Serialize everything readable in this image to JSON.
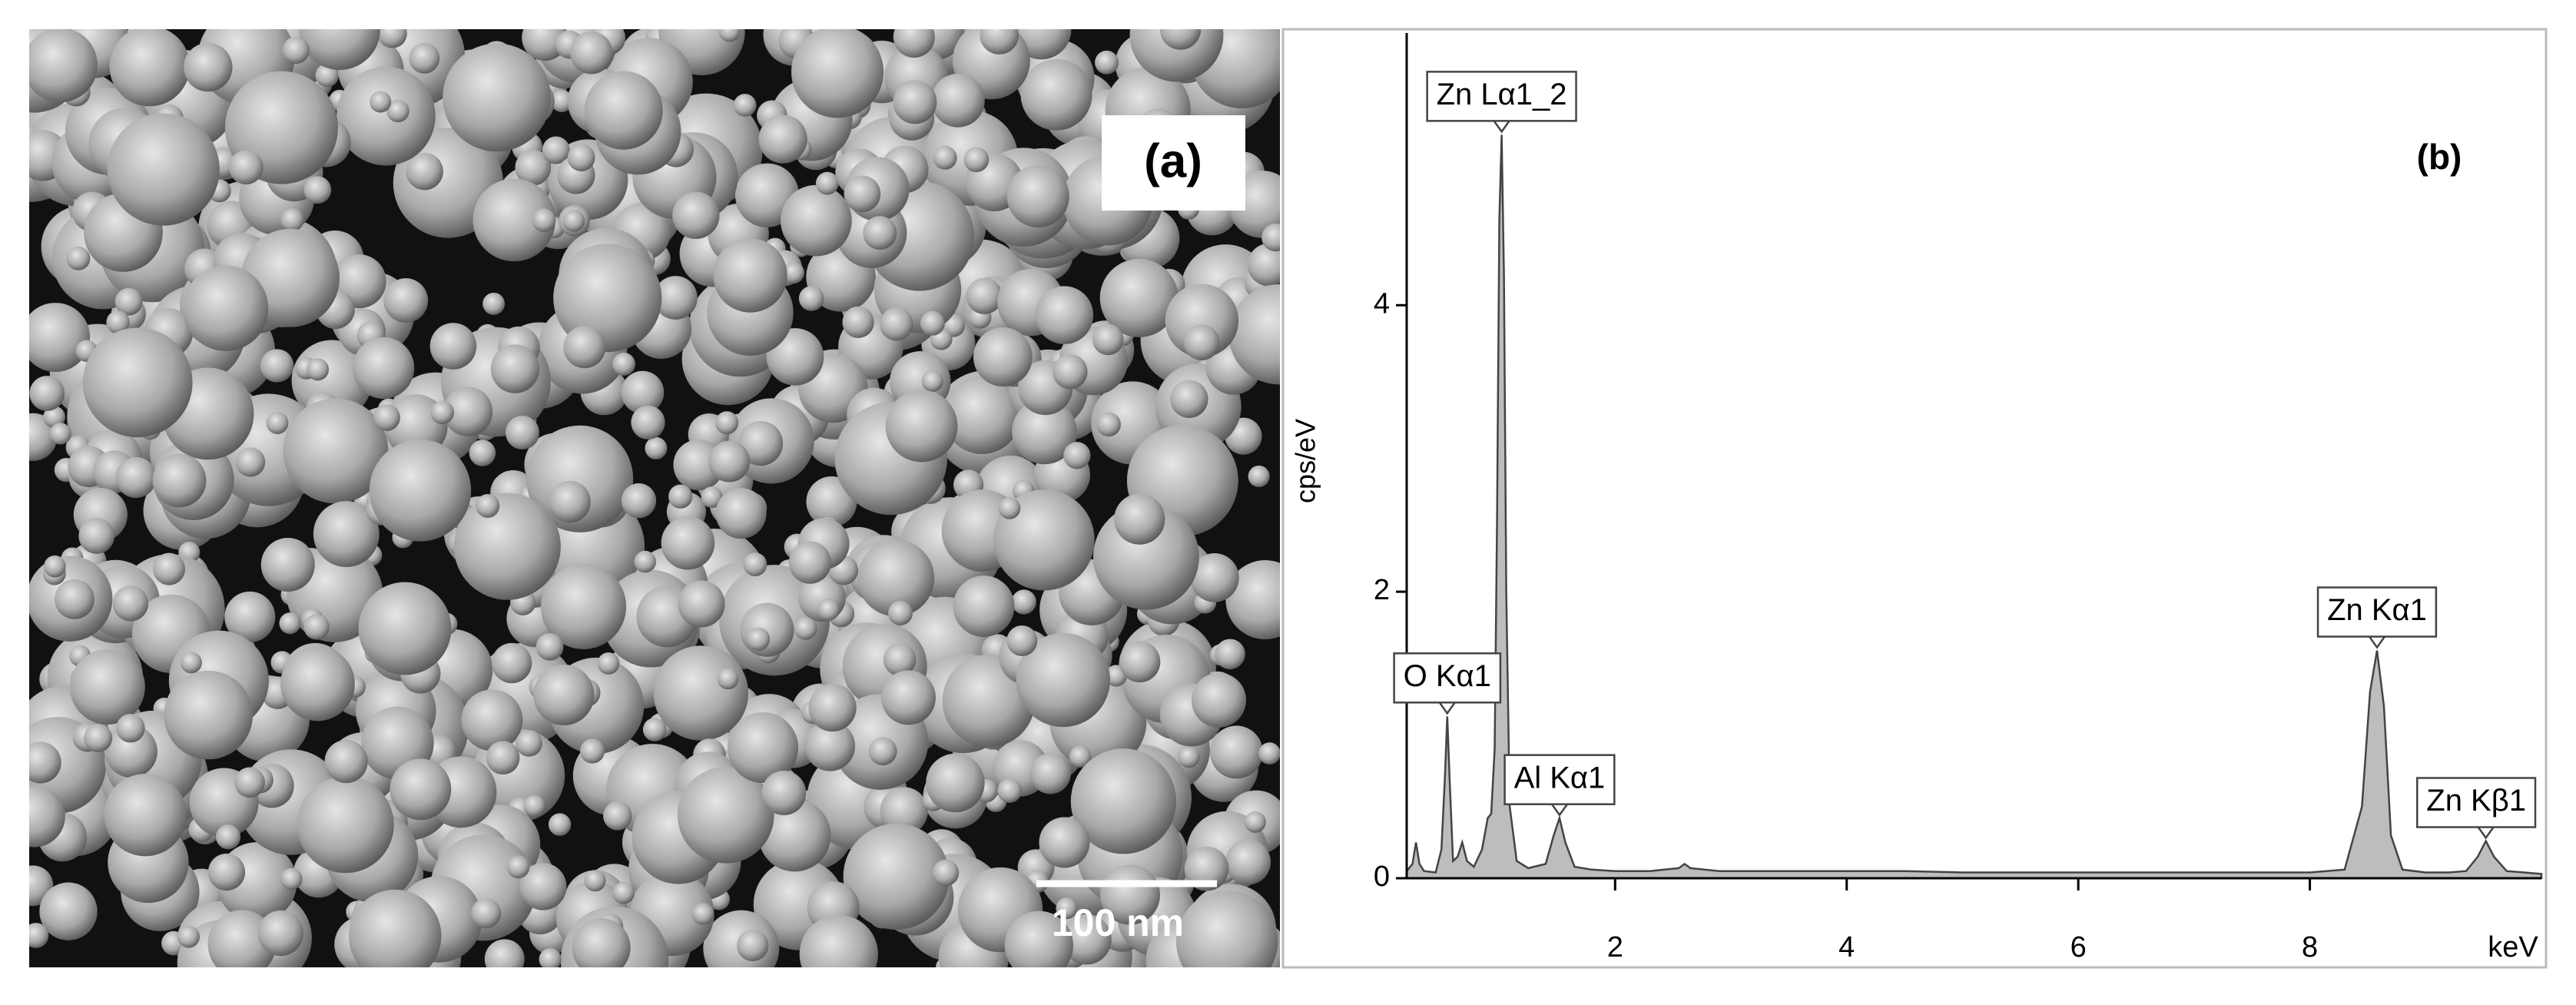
{
  "sem_image": {
    "label": "(a)",
    "scale_bar": "100 nm"
  },
  "chart_data": {
    "type": "area",
    "panel_label": "(b)",
    "x_label": "keV",
    "y_label": "cps/eV",
    "x": [
      0.2,
      0.25,
      0.28,
      0.31,
      0.35,
      0.45,
      0.5,
      0.53,
      0.55,
      0.57,
      0.6,
      0.64,
      0.68,
      0.72,
      0.78,
      0.85,
      0.9,
      0.93,
      0.96,
      0.98,
      1.0,
      1.02,
      1.04,
      1.06,
      1.09,
      1.15,
      1.25,
      1.4,
      1.47,
      1.52,
      1.57,
      1.65,
      1.8,
      2.0,
      2.3,
      2.55,
      2.6,
      2.65,
      2.9,
      3.5,
      4.0,
      4.5,
      5.0,
      5.5,
      6.0,
      6.5,
      7.0,
      7.5,
      8.0,
      8.3,
      8.45,
      8.52,
      8.58,
      8.64,
      8.7,
      8.8,
      9.0,
      9.2,
      9.35,
      9.45,
      9.52,
      9.59,
      9.7,
      9.85,
      10.0
    ],
    "values": [
      0.05,
      0.1,
      0.25,
      0.1,
      0.05,
      0.04,
      0.2,
      0.7,
      1.13,
      0.7,
      0.12,
      0.15,
      0.25,
      0.12,
      0.08,
      0.2,
      0.42,
      0.45,
      0.9,
      2.5,
      4.6,
      5.19,
      4.2,
      2.0,
      0.5,
      0.12,
      0.07,
      0.1,
      0.3,
      0.42,
      0.25,
      0.08,
      0.06,
      0.05,
      0.05,
      0.07,
      0.1,
      0.07,
      0.05,
      0.05,
      0.05,
      0.05,
      0.04,
      0.04,
      0.04,
      0.04,
      0.04,
      0.04,
      0.04,
      0.06,
      0.5,
      1.3,
      1.59,
      1.2,
      0.3,
      0.06,
      0.04,
      0.04,
      0.05,
      0.15,
      0.26,
      0.15,
      0.05,
      0.04,
      0.03
    ],
    "color": "#bdbdbd",
    "xlim": [
      0.2,
      10
    ],
    "ylim": [
      0,
      5.9
    ],
    "xticks": [
      2,
      4,
      6,
      8
    ],
    "yticks": [
      0,
      2,
      4
    ],
    "annotations": [
      {
        "text": "O Kα1",
        "x": 0.55,
        "y": 1.13
      },
      {
        "text": "Zn Lα1_2",
        "x": 1.02,
        "y": 5.19
      },
      {
        "text": "Al Kα1",
        "x": 1.52,
        "y": 0.42
      },
      {
        "text": "Zn Kα1",
        "x": 8.58,
        "y": 1.59
      },
      {
        "text": "Zn Kβ1",
        "x": 9.52,
        "y": 0.26
      }
    ]
  }
}
